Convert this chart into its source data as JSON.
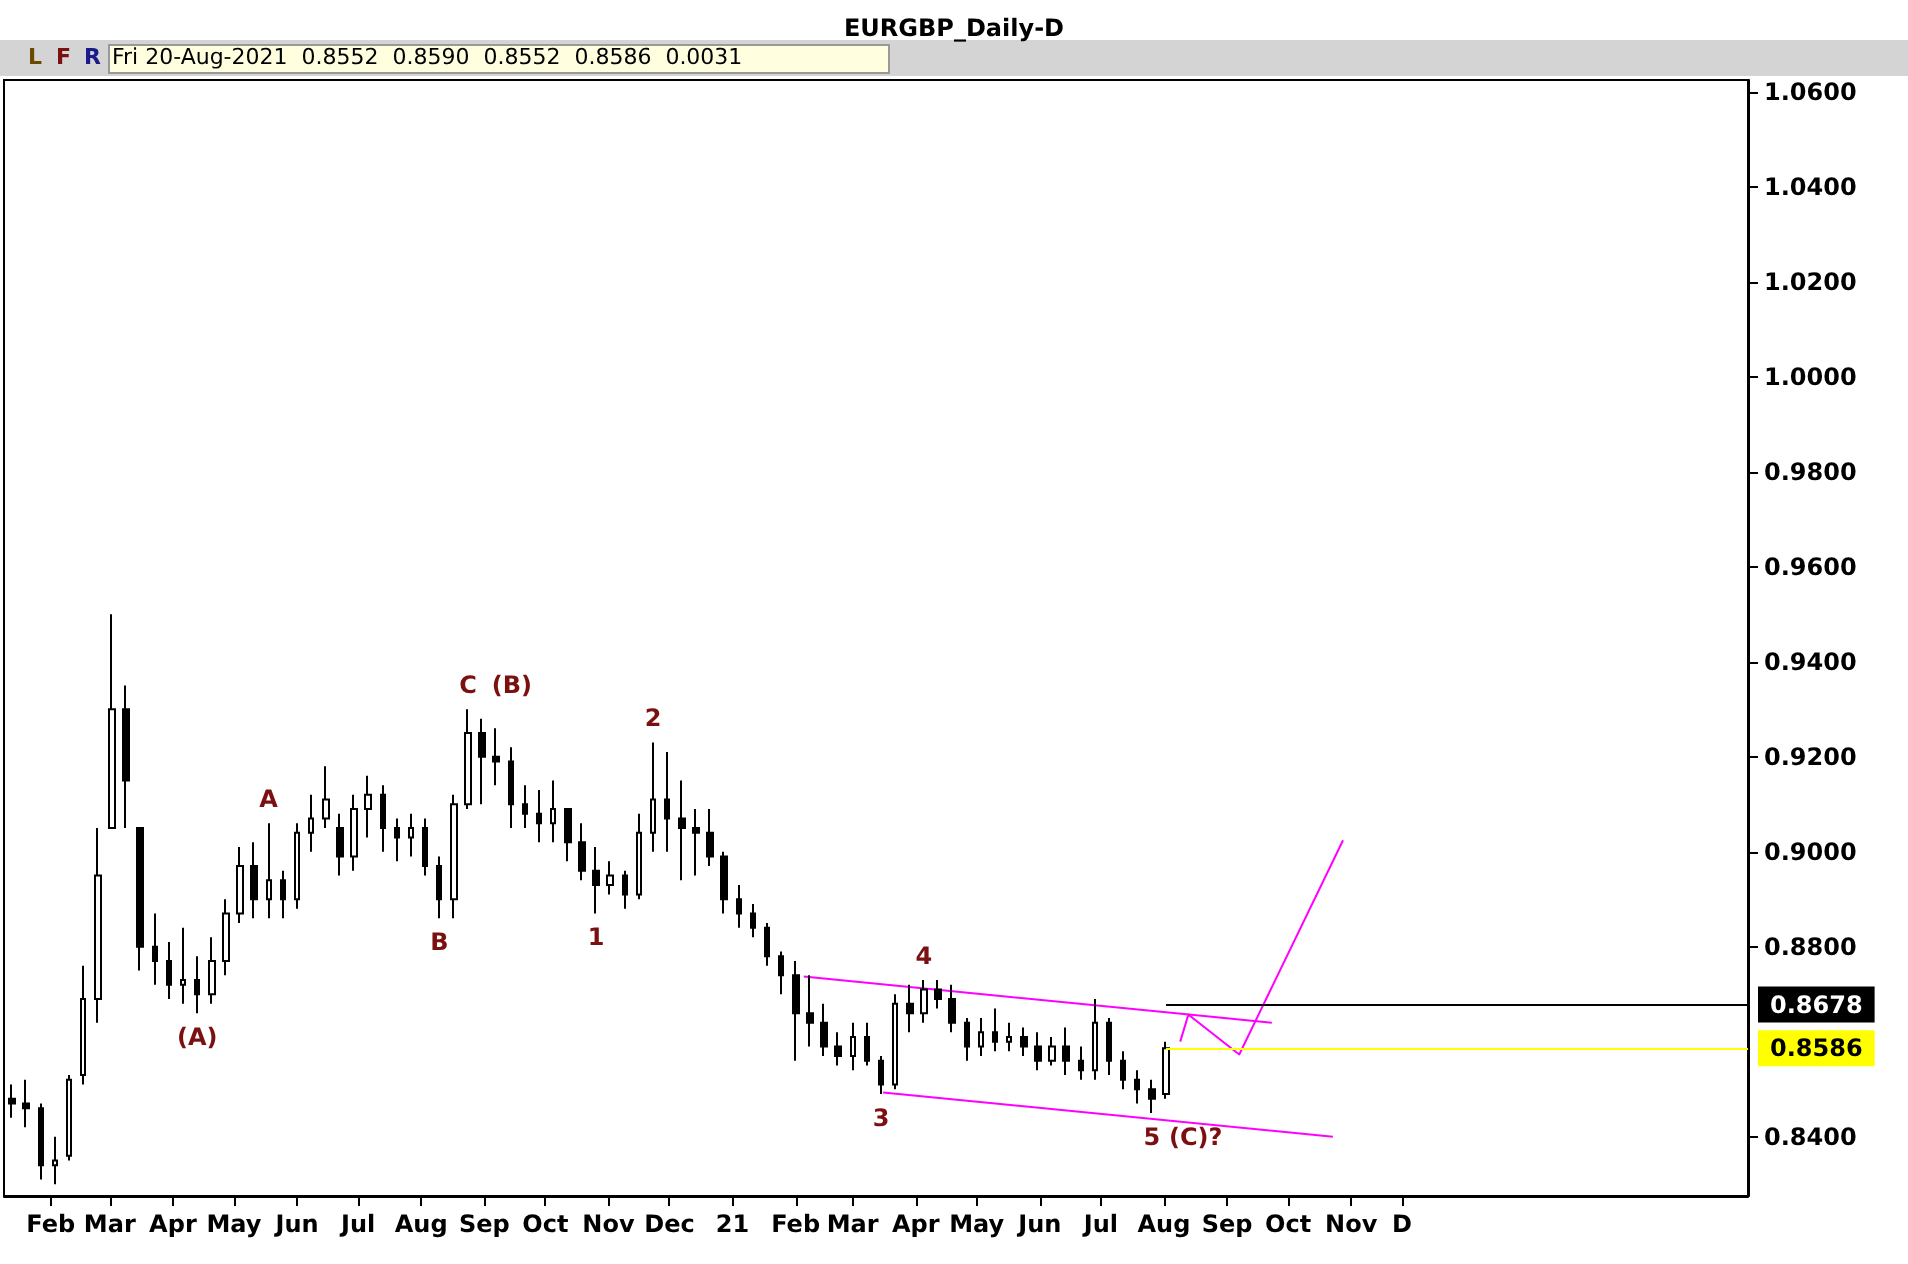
{
  "chart_data": {
    "type": "candlestick",
    "title": "EURGBP_Daily-D",
    "color": "#000000",
    "x": [
      "2020-01-27",
      "2020-02-03",
      "2020-02-10",
      "2020-02-17",
      "2020-02-24",
      "2020-03-02",
      "2020-03-09",
      "2020-03-16",
      "2020-03-23",
      "2020-03-30",
      "2020-04-06",
      "2020-04-13",
      "2020-04-20",
      "2020-04-27",
      "2020-05-04",
      "2020-05-11",
      "2020-05-18",
      "2020-05-25",
      "2020-06-01",
      "2020-06-08",
      "2020-06-15",
      "2020-06-22",
      "2020-06-29",
      "2020-07-06",
      "2020-07-13",
      "2020-07-20",
      "2020-07-27",
      "2020-08-03",
      "2020-08-10",
      "2020-08-17",
      "2020-08-24",
      "2020-08-31",
      "2020-09-07",
      "2020-09-14",
      "2020-09-21",
      "2020-09-28",
      "2020-10-05",
      "2020-10-12",
      "2020-10-19",
      "2020-10-26",
      "2020-11-02",
      "2020-11-09",
      "2020-11-16",
      "2020-11-23",
      "2020-11-30",
      "2020-12-07",
      "2020-12-14",
      "2020-12-21",
      "2020-12-28",
      "2021-01-04",
      "2021-01-11",
      "2021-01-18",
      "2021-01-25",
      "2021-02-01",
      "2021-02-08",
      "2021-02-15",
      "2021-02-22",
      "2021-03-01",
      "2021-03-08",
      "2021-03-15",
      "2021-03-22",
      "2021-03-29",
      "2021-04-05",
      "2021-04-12",
      "2021-04-19",
      "2021-04-26",
      "2021-05-03",
      "2021-05-10",
      "2021-05-17",
      "2021-05-24",
      "2021-05-31",
      "2021-06-07",
      "2021-06-14",
      "2021-06-21",
      "2021-06-28",
      "2021-07-05",
      "2021-07-12",
      "2021-07-19",
      "2021-07-26",
      "2021-08-02",
      "2021-08-09",
      "2021-08-16"
    ],
    "ohlc": [
      [
        0.848,
        0.851,
        0.844,
        0.847
      ],
      [
        0.847,
        0.852,
        0.842,
        0.846
      ],
      [
        0.846,
        0.847,
        0.831,
        0.834
      ],
      [
        0.834,
        0.84,
        0.83,
        0.835
      ],
      [
        0.836,
        0.853,
        0.835,
        0.852
      ],
      [
        0.853,
        0.876,
        0.851,
        0.869
      ],
      [
        0.869,
        0.905,
        0.864,
        0.895
      ],
      [
        0.905,
        0.95,
        0.905,
        0.93
      ],
      [
        0.93,
        0.935,
        0.905,
        0.915
      ],
      [
        0.905,
        0.905,
        0.875,
        0.88
      ],
      [
        0.88,
        0.887,
        0.872,
        0.877
      ],
      [
        0.877,
        0.881,
        0.869,
        0.872
      ],
      [
        0.872,
        0.884,
        0.868,
        0.873
      ],
      [
        0.873,
        0.878,
        0.866,
        0.87
      ],
      [
        0.87,
        0.882,
        0.868,
        0.877
      ],
      [
        0.877,
        0.89,
        0.874,
        0.887
      ],
      [
        0.887,
        0.901,
        0.885,
        0.897
      ],
      [
        0.897,
        0.902,
        0.886,
        0.89
      ],
      [
        0.89,
        0.906,
        0.886,
        0.894
      ],
      [
        0.894,
        0.896,
        0.886,
        0.89
      ],
      [
        0.89,
        0.906,
        0.888,
        0.904
      ],
      [
        0.904,
        0.912,
        0.9,
        0.907
      ],
      [
        0.907,
        0.918,
        0.905,
        0.911
      ],
      [
        0.905,
        0.908,
        0.895,
        0.899
      ],
      [
        0.899,
        0.912,
        0.896,
        0.909
      ],
      [
        0.909,
        0.916,
        0.903,
        0.912
      ],
      [
        0.912,
        0.914,
        0.9,
        0.905
      ],
      [
        0.905,
        0.907,
        0.898,
        0.903
      ],
      [
        0.903,
        0.908,
        0.899,
        0.905
      ],
      [
        0.905,
        0.907,
        0.895,
        0.897
      ],
      [
        0.897,
        0.899,
        0.886,
        0.89
      ],
      [
        0.89,
        0.912,
        0.886,
        0.91
      ],
      [
        0.91,
        0.93,
        0.909,
        0.925
      ],
      [
        0.925,
        0.928,
        0.91,
        0.92
      ],
      [
        0.92,
        0.926,
        0.914,
        0.919
      ],
      [
        0.919,
        0.922,
        0.905,
        0.91
      ],
      [
        0.91,
        0.914,
        0.905,
        0.908
      ],
      [
        0.908,
        0.913,
        0.902,
        0.906
      ],
      [
        0.906,
        0.915,
        0.902,
        0.909
      ],
      [
        0.909,
        0.909,
        0.898,
        0.902
      ],
      [
        0.902,
        0.906,
        0.894,
        0.896
      ],
      [
        0.896,
        0.901,
        0.887,
        0.893
      ],
      [
        0.893,
        0.898,
        0.891,
        0.895
      ],
      [
        0.895,
        0.896,
        0.888,
        0.891
      ],
      [
        0.891,
        0.908,
        0.89,
        0.904
      ],
      [
        0.904,
        0.923,
        0.9,
        0.911
      ],
      [
        0.911,
        0.921,
        0.9,
        0.907
      ],
      [
        0.907,
        0.915,
        0.894,
        0.905
      ],
      [
        0.905,
        0.909,
        0.895,
        0.904
      ],
      [
        0.904,
        0.909,
        0.897,
        0.899
      ],
      [
        0.899,
        0.9,
        0.887,
        0.89
      ],
      [
        0.89,
        0.893,
        0.884,
        0.887
      ],
      [
        0.887,
        0.889,
        0.882,
        0.884
      ],
      [
        0.884,
        0.885,
        0.876,
        0.878
      ],
      [
        0.878,
        0.879,
        0.87,
        0.874
      ],
      [
        0.874,
        0.877,
        0.856,
        0.866
      ],
      [
        0.866,
        0.874,
        0.859,
        0.864
      ],
      [
        0.864,
        0.868,
        0.857,
        0.859
      ],
      [
        0.859,
        0.862,
        0.855,
        0.857
      ],
      [
        0.857,
        0.864,
        0.854,
        0.861
      ],
      [
        0.861,
        0.864,
        0.855,
        0.856
      ],
      [
        0.856,
        0.857,
        0.849,
        0.851
      ],
      [
        0.851,
        0.87,
        0.85,
        0.868
      ],
      [
        0.868,
        0.872,
        0.862,
        0.866
      ],
      [
        0.866,
        0.873,
        0.864,
        0.871
      ],
      [
        0.871,
        0.873,
        0.867,
        0.869
      ],
      [
        0.869,
        0.872,
        0.862,
        0.864
      ],
      [
        0.864,
        0.865,
        0.856,
        0.859
      ],
      [
        0.859,
        0.865,
        0.857,
        0.862
      ],
      [
        0.862,
        0.867,
        0.858,
        0.86
      ],
      [
        0.86,
        0.864,
        0.858,
        0.861
      ],
      [
        0.861,
        0.863,
        0.857,
        0.859
      ],
      [
        0.859,
        0.862,
        0.854,
        0.856
      ],
      [
        0.856,
        0.861,
        0.855,
        0.859
      ],
      [
        0.859,
        0.863,
        0.853,
        0.856
      ],
      [
        0.856,
        0.859,
        0.852,
        0.854
      ],
      [
        0.854,
        0.869,
        0.852,
        0.864
      ],
      [
        0.864,
        0.865,
        0.853,
        0.856
      ],
      [
        0.856,
        0.858,
        0.85,
        0.852
      ],
      [
        0.852,
        0.854,
        0.847,
        0.85
      ],
      [
        0.85,
        0.852,
        0.845,
        0.848
      ],
      [
        0.849,
        0.86,
        0.848,
        0.8586
      ]
    ],
    "series": [
      {
        "type": "line",
        "color": "#ff00ff",
        "x": [
          "2021-02-19",
          "2021-10-07"
        ],
        "values": [
          0.8737,
          0.864
        ]
      },
      {
        "type": "line",
        "color": "#ff00ff",
        "x": [
          "2021-03-30",
          "2021-11-06"
        ],
        "values": [
          0.8493,
          0.84
        ]
      },
      {
        "type": "line",
        "color": "#ff00ff",
        "x": [
          "2021-08-23",
          "2021-08-27",
          "2021-09-21",
          "2021-11-11"
        ],
        "values": [
          0.86,
          0.8657,
          0.8573,
          0.9024
        ]
      }
    ],
    "xlim": [
      "2020-01-23",
      "2022-05-29"
    ],
    "xticks": [
      {
        "value": "2020-02-15",
        "label": "Feb"
      },
      {
        "value": "2020-03-15",
        "label": "Mar"
      },
      {
        "value": "2020-04-15",
        "label": "Apr"
      },
      {
        "value": "2020-05-15",
        "label": "May"
      },
      {
        "value": "2020-06-15",
        "label": "Jun"
      },
      {
        "value": "2020-07-15",
        "label": "Jul"
      },
      {
        "value": "2020-08-15",
        "label": "Aug"
      },
      {
        "value": "2020-09-15",
        "label": "Sep"
      },
      {
        "value": "2020-10-15",
        "label": "Oct"
      },
      {
        "value": "2020-11-15",
        "label": "Nov"
      },
      {
        "value": "2020-12-15",
        "label": "Dec"
      },
      {
        "value": "2021-01-15",
        "label": "21"
      },
      {
        "value": "2021-02-15",
        "label": "Feb"
      },
      {
        "value": "2021-03-15",
        "label": "Mar"
      },
      {
        "value": "2021-04-15",
        "label": "Apr"
      },
      {
        "value": "2021-05-15",
        "label": "May"
      },
      {
        "value": "2021-06-15",
        "label": "Jun"
      },
      {
        "value": "2021-07-15",
        "label": "Jul"
      },
      {
        "value": "2021-08-15",
        "label": "Aug"
      },
      {
        "value": "2021-09-15",
        "label": "Sep"
      },
      {
        "value": "2021-10-15",
        "label": "Oct"
      },
      {
        "value": "2021-11-15",
        "label": "Nov"
      },
      {
        "value": "2021-12-10",
        "label": "D"
      }
    ],
    "ylim": [
      0.8275,
      1.0625
    ],
    "yticks": [
      {
        "value": 0.84,
        "label": "0.8400"
      },
      {
        "value": 0.88,
        "label": "0.8800"
      },
      {
        "value": 0.9,
        "label": "0.9000"
      },
      {
        "value": 0.92,
        "label": "0.9200"
      },
      {
        "value": 0.94,
        "label": "0.9400"
      },
      {
        "value": 0.96,
        "label": "0.9600"
      },
      {
        "value": 0.98,
        "label": "0.9800"
      },
      {
        "value": 1.0,
        "label": "1.0000"
      },
      {
        "value": 1.02,
        "label": "1.0200"
      },
      {
        "value": 1.04,
        "label": "1.0400"
      },
      {
        "value": 1.06,
        "label": "1.0600"
      }
    ],
    "ref_lines": [
      {
        "axis": "y",
        "value": 0.8678,
        "label": "0.8678",
        "color": "#000000"
      },
      {
        "axis": "y",
        "value": 0.8586,
        "label": "0.8586",
        "color": "#ffff00"
      }
    ],
    "annotations": [
      "L",
      "F",
      "R",
      "Fri 20-Aug-2021  0.8552  0.8590  0.8552  0.8586  0.0031",
      {
        "text": "(A)",
        "x": "2020-04-27",
        "y": 0.866
      },
      {
        "text": "A",
        "x": "2020-06-01",
        "y": 0.906
      },
      {
        "text": "B",
        "x": "2020-08-24",
        "y": 0.886
      },
      {
        "text": "C",
        "x": "2020-09-07",
        "y": 0.93
      },
      {
        "text": "(B)",
        "x": "2020-09-07",
        "y": 0.93
      },
      {
        "text": "1",
        "x": "2020-11-09",
        "y": 0.887
      },
      {
        "text": "2",
        "x": "2020-12-07",
        "y": 0.923
      },
      {
        "text": "3",
        "x": "2021-03-29",
        "y": 0.849
      },
      {
        "text": "4",
        "x": "2021-04-19",
        "y": 0.873
      },
      {
        "text": "5",
        "x": "2021-08-09",
        "y": 0.845
      },
      {
        "text": "(C)?",
        "x": "2021-08-09",
        "y": 0.845
      }
    ],
    "grid": false,
    "marker": "none",
    "line_style": "solid"
  }
}
